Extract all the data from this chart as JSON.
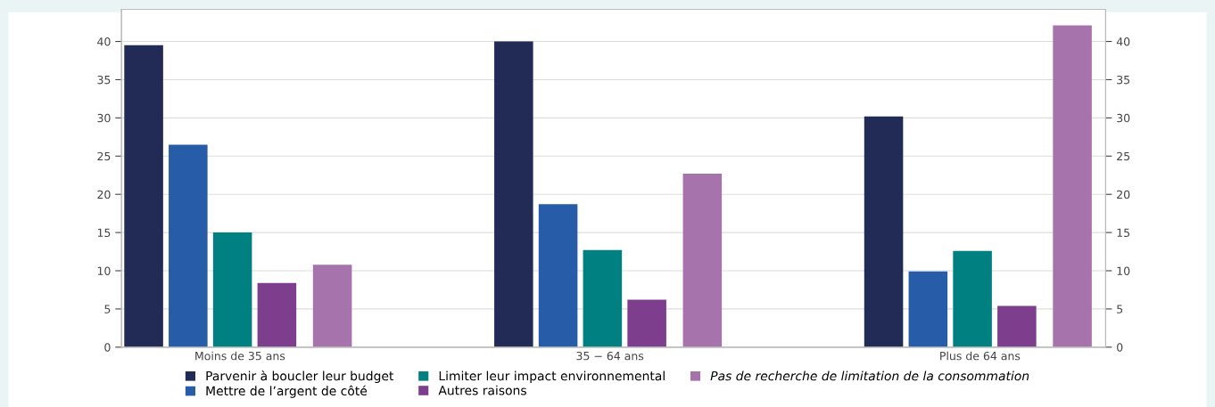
{
  "chart_data": {
    "type": "bar",
    "categories": [
      "Moins de 35 ans",
      "35 − 64 ans",
      "Plus de 64 ans"
    ],
    "series": [
      {
        "name": "Parvenir à boucler leur budget",
        "color": "#222b55",
        "values": [
          39.5,
          40.0,
          30.2
        ]
      },
      {
        "name": "Mettre de l’argent de côté",
        "color": "#275ca8",
        "values": [
          26.5,
          18.7,
          9.9
        ]
      },
      {
        "name": "Limiter leur impact environnemental",
        "color": "#008080",
        "values": [
          15.0,
          12.7,
          12.6
        ]
      },
      {
        "name": "Autres raisons",
        "color": "#7d3e8e",
        "values": [
          8.4,
          6.2,
          5.4
        ]
      },
      {
        "name": "Pas de recherche de limitation de la consommation",
        "color": "#a773ac",
        "values": [
          10.8,
          22.7,
          42.1
        ]
      }
    ],
    "ylim": [
      0,
      44.2
    ],
    "yticks": [
      0,
      5,
      10,
      15,
      20,
      25,
      30,
      35,
      40
    ],
    "y2lim": [
      0,
      44.2
    ],
    "y2ticks": [
      0,
      5,
      10,
      15,
      20,
      25,
      30,
      35,
      40
    ],
    "grid": "y",
    "legend": "bottom"
  }
}
